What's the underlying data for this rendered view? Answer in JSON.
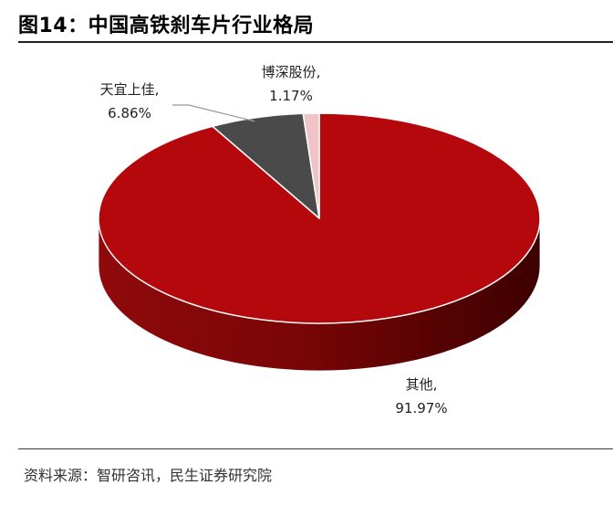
{
  "title": "图14：中国高铁刹车片行业格局",
  "source": "资料来源：智研咨讯，民生证券研究院",
  "colors": {
    "other": "#b5080c",
    "other_side_dark": "#4e0000",
    "tianyi": "#4a4a4a",
    "tianyi_side": "#2a2a2a",
    "bosheng": "#f0c4c6",
    "bosheng_side": "#c99a9c"
  },
  "chart_data": {
    "type": "pie",
    "title": "",
    "start_angle_deg": -90,
    "direction": "clockwise",
    "series": [
      {
        "name": "其他",
        "value": 91.97,
        "label_name": "其他,",
        "label_value": "91.97%"
      },
      {
        "name": "天宜上佳",
        "value": 6.86,
        "label_name": "天宜上佳,",
        "label_value": "6.86%"
      },
      {
        "name": "博深股份",
        "value": 1.17,
        "label_name": "博深股份,",
        "label_value": "1.17%"
      }
    ]
  }
}
